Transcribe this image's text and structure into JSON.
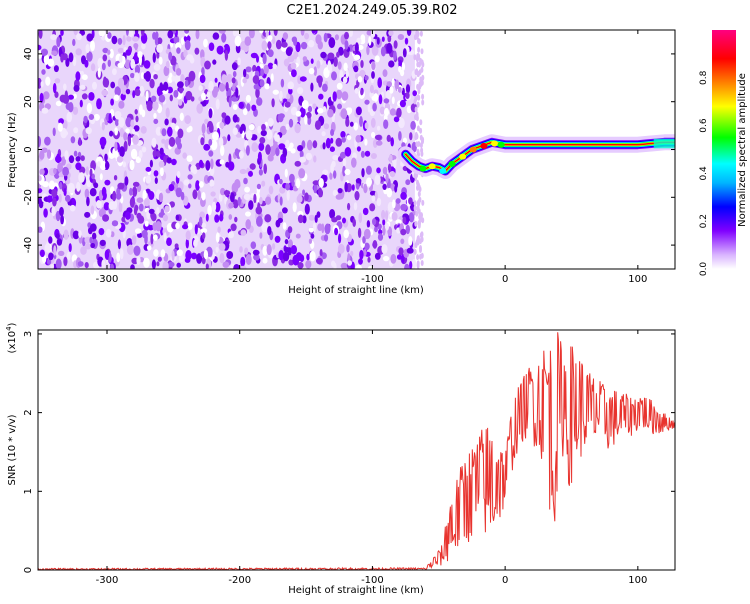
{
  "page": {
    "title": "C2E1.2024.249.05.39.R02"
  },
  "chart_data": [
    {
      "type": "heatmap",
      "title": "C2E1.2024.249.05.39.R02",
      "xlabel": "Height of straight line (km)",
      "ylabel": "Frequency (Hz)",
      "xlim": [
        -352,
        128
      ],
      "ylim": [
        -50,
        50
      ],
      "x_ticks": [
        -300,
        -200,
        -100,
        0,
        100
      ],
      "x_tick_labels": [
        "-300",
        "-200",
        "-100",
        "0",
        "100"
      ],
      "y_ticks": [
        -40,
        -20,
        0,
        20,
        40
      ],
      "y_tick_labels": [
        "-40",
        "-20",
        "0",
        "20",
        "40"
      ],
      "colorbar": {
        "label": "Normalized spectral amplitude",
        "range": [
          0,
          1
        ],
        "ticks": [
          0.0,
          0.2,
          0.4,
          0.6,
          0.8
        ],
        "tick_labels": [
          "0.0",
          "0.2",
          "0.4",
          "0.6",
          "0.8"
        ],
        "colors": [
          "#ffffff",
          "#d9b3ff",
          "#8000ff",
          "#0000ff",
          "#00ffff",
          "#00ff00",
          "#ffff00",
          "#ff8000",
          "#ff0000",
          "#ff0080"
        ]
      },
      "noise_region_x": [
        -352,
        -68
      ],
      "signal_ridge": {
        "x": [
          -75,
          -70,
          -65,
          -60,
          -55,
          -50,
          -45,
          -40,
          -35,
          -30,
          -25,
          -20,
          -15,
          -10,
          -5,
          0,
          20,
          40,
          60,
          80,
          100,
          110,
          120,
          128
        ],
        "y": [
          -2,
          -5,
          -7,
          -8,
          -7,
          -7.5,
          -9,
          -6,
          -4,
          -2,
          0,
          1,
          2,
          3,
          2.5,
          2,
          2,
          2,
          2,
          2,
          2,
          2.5,
          3,
          3
        ]
      }
    },
    {
      "type": "line",
      "xlabel": "Height of straight line (km)",
      "ylabel": "SNR (10 * v/v)",
      "scale_label": "(x10",
      "scale_exponent": "4",
      "xlim": [
        -352,
        128
      ],
      "ylim": [
        0,
        3.05
      ],
      "x_ticks": [
        -300,
        -200,
        -100,
        0,
        100
      ],
      "x_tick_labels": [
        "-300",
        "-200",
        "-100",
        "0",
        "100"
      ],
      "y_ticks": [
        0,
        1,
        2,
        3
      ],
      "y_tick_labels": [
        "0",
        "1",
        "2",
        "3"
      ],
      "color": "#e8332e",
      "envelope": {
        "x": [
          -352,
          -60,
          -48,
          -42,
          -36,
          -30,
          -24,
          -18,
          -12,
          -6,
          0,
          6,
          12,
          18,
          24,
          30,
          36,
          40,
          44,
          48,
          54,
          60,
          66,
          72,
          78,
          84,
          90,
          96,
          102,
          108,
          114,
          120,
          128
        ],
        "upper": [
          0.02,
          0.03,
          0.3,
          0.9,
          1.2,
          1.5,
          1.6,
          1.8,
          1.9,
          1.7,
          1.5,
          2.2,
          2.4,
          2.6,
          2.7,
          2.9,
          2.95,
          3.05,
          2.8,
          2.9,
          2.85,
          2.6,
          2.5,
          2.4,
          2.3,
          2.3,
          2.25,
          2.2,
          2.25,
          2.2,
          2.1,
          2.0,
          1.9
        ],
        "lower": [
          0.0,
          0.0,
          0.05,
          0.1,
          0.2,
          0.3,
          0.4,
          0.5,
          0.3,
          0.5,
          0.8,
          1.3,
          1.6,
          1.7,
          1.5,
          1.3,
          0.35,
          1.0,
          1.5,
          1.0,
          1.3,
          1.5,
          1.5,
          1.7,
          1.5,
          1.6,
          1.7,
          1.7,
          1.8,
          1.75,
          1.7,
          1.75,
          1.8
        ]
      }
    }
  ]
}
